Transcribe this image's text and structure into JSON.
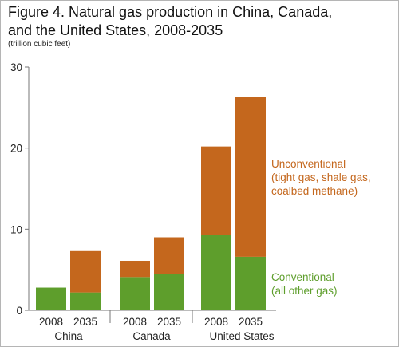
{
  "title_lines": [
    "Figure 4. Natural gas production in China, Canada,",
    "and the United States, 2008-2035"
  ],
  "unit_label": "(trillion cubic feet)",
  "chart_data": {
    "type": "bar",
    "stacked": true,
    "title": "Figure 4. Natural gas production in China, Canada, and the United States, 2008-2035",
    "ylabel": "(trillion cubic feet)",
    "xlabel": "",
    "ylim": [
      0,
      30
    ],
    "yticks": [
      0,
      10,
      20,
      30
    ],
    "grid": false,
    "groups": [
      "China",
      "Canada",
      "United States"
    ],
    "categories": [
      "2008",
      "2035",
      "2008",
      "2035",
      "2008",
      "2035"
    ],
    "series": [
      {
        "name": "Conventional (all other gas)",
        "color": "#5e9e2c",
        "values": [
          2.8,
          2.2,
          4.1,
          4.5,
          9.3,
          6.6
        ]
      },
      {
        "name": "Unconventional (tight gas, shale gas, coalbed methane)",
        "color": "#c4671d",
        "values": [
          0.0,
          5.1,
          2.0,
          4.5,
          10.9,
          19.7
        ]
      }
    ],
    "annotations": [
      {
        "series": "Unconventional",
        "lines": [
          "Unconventional",
          "(tight gas, shale gas,",
          "coalbed methane)"
        ],
        "color": "#c4671d"
      },
      {
        "series": "Conventional",
        "lines": [
          "Conventional",
          "(all other gas)"
        ],
        "color": "#5e9e2c"
      }
    ]
  }
}
